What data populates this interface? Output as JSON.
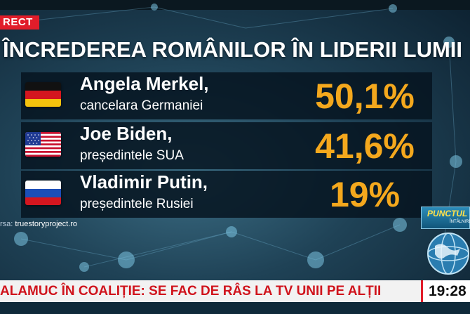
{
  "live_badge": "RECT",
  "title": "ÎNCREDEREA ROMÂNILOR ÎN LIDERII LUMII",
  "leaders": [
    {
      "name": "Angela Merkel,",
      "role": "cancelara Germaniei",
      "percent": "50,1%",
      "flag": "germany-flag-icon"
    },
    {
      "name": "Joe Biden,",
      "role": "președintele SUA",
      "percent": "41,6%",
      "flag": "usa-flag-icon"
    },
    {
      "name": "Vladimir Putin,",
      "role": "președintele Rusiei",
      "percent": "19%",
      "flag": "russia-flag-icon"
    }
  ],
  "source": {
    "label": "rsa:",
    "value": "truestoryproject.ro"
  },
  "ticker": "ALAMUC ÎN COALIȚIE: SE FAC DE RÂS LA TV UNII PE ALȚII",
  "clock": "19:28",
  "show_logo": {
    "line1": "PUNCTUL",
    "line2": "ÎNTÂLNIRE"
  },
  "colors": {
    "accent_red": "#e11d2a",
    "percent_orange": "#f4a81d",
    "row_bg": "#061420"
  }
}
